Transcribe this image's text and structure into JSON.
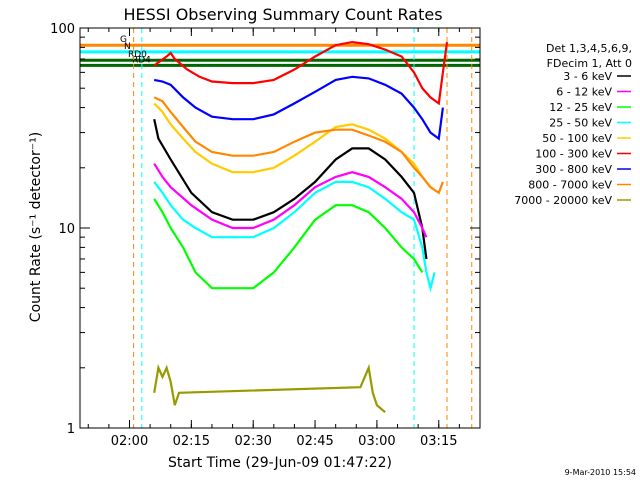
{
  "chart_data": {
    "type": "line",
    "title": "HESSI Observing Summary Count Rates",
    "xlabel": "Start Time (29-Jun-09 01:47:22)",
    "ylabel": "Count Rate (s⁻¹ detector⁻¹)",
    "x_unit": "minutes since 00:00 UT",
    "xlim": [
      108,
      205
    ],
    "ylim": [
      1,
      100
    ],
    "yscale": "log",
    "x_ticks": [
      {
        "value": 120,
        "label": "02:00"
      },
      {
        "value": 135,
        "label": "02:15"
      },
      {
        "value": 150,
        "label": "02:30"
      },
      {
        "value": 165,
        "label": "02:45"
      },
      {
        "value": 180,
        "label": "03:00"
      },
      {
        "value": 195,
        "label": "03:15"
      }
    ],
    "y_ticks": [
      {
        "value": 1,
        "label": "1"
      },
      {
        "value": 10,
        "label": "10"
      },
      {
        "value": 100,
        "label": "100"
      }
    ],
    "legend_title": [
      "Det 1,3,4,5,6,9,",
      "FDecim 1, Att 0"
    ],
    "series": [
      {
        "name": "3 - 6 keV",
        "color": "#000000",
        "points": [
          [
            126,
            35
          ],
          [
            127,
            28
          ],
          [
            130,
            22
          ],
          [
            135,
            15
          ],
          [
            140,
            12
          ],
          [
            145,
            11
          ],
          [
            150,
            11
          ],
          [
            155,
            12
          ],
          [
            160,
            14
          ],
          [
            165,
            17
          ],
          [
            170,
            22
          ],
          [
            174,
            25
          ],
          [
            178,
            25
          ],
          [
            182,
            22
          ],
          [
            186,
            18
          ],
          [
            189,
            15
          ],
          [
            191,
            10
          ],
          [
            192,
            7
          ]
        ]
      },
      {
        "name": "6 - 12 keV",
        "color": "#ff00ff",
        "points": [
          [
            126,
            21
          ],
          [
            128,
            18
          ],
          [
            130,
            16
          ],
          [
            135,
            13
          ],
          [
            140,
            11
          ],
          [
            145,
            10
          ],
          [
            150,
            10
          ],
          [
            155,
            11
          ],
          [
            160,
            13
          ],
          [
            165,
            16
          ],
          [
            170,
            18
          ],
          [
            174,
            19
          ],
          [
            178,
            18
          ],
          [
            182,
            16
          ],
          [
            186,
            14
          ],
          [
            189,
            12
          ],
          [
            191,
            10
          ],
          [
            192,
            9
          ]
        ]
      },
      {
        "name": "12 - 25 keV",
        "color": "#00ff00",
        "points": [
          [
            126,
            14
          ],
          [
            128,
            12
          ],
          [
            130,
            10
          ],
          [
            133,
            8
          ],
          [
            136,
            6
          ],
          [
            140,
            5
          ],
          [
            145,
            5
          ],
          [
            150,
            5
          ],
          [
            155,
            6
          ],
          [
            160,
            8
          ],
          [
            165,
            11
          ],
          [
            170,
            13
          ],
          [
            174,
            13
          ],
          [
            178,
            12
          ],
          [
            182,
            10
          ],
          [
            186,
            8
          ],
          [
            189,
            7
          ],
          [
            191,
            6
          ]
        ]
      },
      {
        "name": "25 - 50 keV",
        "color": "#00ffff",
        "points": [
          [
            126,
            17
          ],
          [
            128,
            15
          ],
          [
            130,
            13
          ],
          [
            133,
            11
          ],
          [
            136,
            10
          ],
          [
            140,
            9
          ],
          [
            145,
            9
          ],
          [
            150,
            9
          ],
          [
            155,
            10
          ],
          [
            160,
            12
          ],
          [
            165,
            15
          ],
          [
            170,
            17
          ],
          [
            174,
            17
          ],
          [
            178,
            16
          ],
          [
            182,
            14
          ],
          [
            186,
            12
          ],
          [
            189,
            11
          ],
          [
            191,
            8
          ],
          [
            192,
            6
          ],
          [
            193,
            5
          ],
          [
            194,
            6
          ]
        ]
      },
      {
        "name": "50 - 100 keV",
        "color": "#ffcc00",
        "points": [
          [
            126,
            42
          ],
          [
            128,
            38
          ],
          [
            130,
            33
          ],
          [
            133,
            28
          ],
          [
            136,
            24
          ],
          [
            140,
            21
          ],
          [
            145,
            19
          ],
          [
            150,
            19
          ],
          [
            155,
            20
          ],
          [
            160,
            23
          ],
          [
            165,
            27
          ],
          [
            170,
            32
          ],
          [
            174,
            33
          ],
          [
            178,
            31
          ],
          [
            182,
            28
          ],
          [
            186,
            24
          ],
          [
            189,
            21
          ],
          [
            191,
            18
          ],
          [
            193,
            16
          ]
        ]
      },
      {
        "name": "100 - 300 keV",
        "color": "#ff0000",
        "points": [
          [
            126,
            65
          ],
          [
            129,
            72
          ],
          [
            130,
            75
          ],
          [
            131,
            70
          ],
          [
            134,
            62
          ],
          [
            137,
            57
          ],
          [
            140,
            54
          ],
          [
            145,
            53
          ],
          [
            150,
            53
          ],
          [
            155,
            55
          ],
          [
            160,
            62
          ],
          [
            165,
            72
          ],
          [
            170,
            82
          ],
          [
            174,
            85
          ],
          [
            178,
            83
          ],
          [
            182,
            78
          ],
          [
            186,
            72
          ],
          [
            189,
            60
          ],
          [
            191,
            50
          ],
          [
            193,
            45
          ],
          [
            195,
            42
          ],
          [
            196,
            60
          ],
          [
            197,
            85
          ]
        ]
      },
      {
        "name": "300 - 800 keV",
        "color": "#0000ff",
        "points": [
          [
            126,
            55
          ],
          [
            128,
            54
          ],
          [
            130,
            52
          ],
          [
            133,
            45
          ],
          [
            136,
            40
          ],
          [
            140,
            36
          ],
          [
            145,
            35
          ],
          [
            150,
            35
          ],
          [
            155,
            37
          ],
          [
            160,
            42
          ],
          [
            165,
            48
          ],
          [
            170,
            55
          ],
          [
            174,
            57
          ],
          [
            178,
            56
          ],
          [
            182,
            52
          ],
          [
            186,
            47
          ],
          [
            189,
            40
          ],
          [
            191,
            35
          ],
          [
            193,
            30
          ],
          [
            195,
            28
          ],
          [
            196,
            40
          ]
        ]
      },
      {
        "name": "800 - 7000 keV",
        "color": "#ff8800",
        "points": [
          [
            126,
            45
          ],
          [
            128,
            43
          ],
          [
            130,
            38
          ],
          [
            133,
            32
          ],
          [
            136,
            27
          ],
          [
            140,
            24
          ],
          [
            145,
            23
          ],
          [
            150,
            23
          ],
          [
            155,
            24
          ],
          [
            160,
            27
          ],
          [
            165,
            30
          ],
          [
            170,
            31
          ],
          [
            174,
            31
          ],
          [
            178,
            29
          ],
          [
            182,
            27
          ],
          [
            186,
            24
          ],
          [
            189,
            20
          ],
          [
            191,
            18
          ],
          [
            193,
            16
          ],
          [
            195,
            15
          ],
          [
            196,
            17
          ]
        ]
      },
      {
        "name": "7000 - 20000 keV",
        "color": "#999900",
        "points": [
          [
            126,
            1.5
          ],
          [
            127,
            2
          ],
          [
            128,
            1.8
          ],
          [
            129,
            2
          ],
          [
            130,
            1.7
          ],
          [
            131,
            1.3
          ],
          [
            132,
            1.5
          ],
          [
            176,
            1.6
          ],
          [
            178,
            2
          ],
          [
            179,
            1.5
          ],
          [
            180,
            1.3
          ],
          [
            182,
            1.2
          ]
        ]
      }
    ],
    "state_lines": [
      {
        "label": "G",
        "color": "#ff8800",
        "value": 82
      },
      {
        "label": "N",
        "color": "#00ffff",
        "value": 76
      },
      {
        "label": "RD0",
        "color": "#006600",
        "value": 69
      },
      {
        "label": "RD4",
        "color": "#006600",
        "value": 65
      }
    ],
    "legend_position": "right",
    "grid": false
  },
  "timestamp": "9-Mar-2010 15:54"
}
